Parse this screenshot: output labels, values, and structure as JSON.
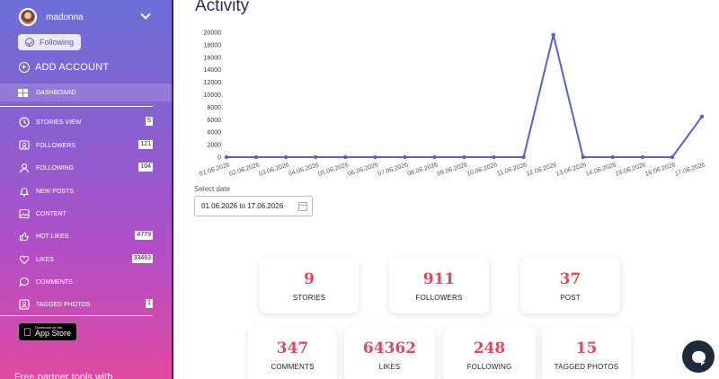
{
  "sidebar": {
    "profile": {
      "name": "madonna"
    },
    "following_button": "Following",
    "add_account": "ADD ACCOUNT",
    "dashboard": "DASHBOARD",
    "items": [
      {
        "label": "STORIES VIEW",
        "badge": "5",
        "icon": "clock-icon"
      },
      {
        "label": "FOLLOWERS",
        "badge": "121",
        "icon": "followers-icon"
      },
      {
        "label": "FOLLOWING",
        "badge": "104",
        "icon": "user-icon"
      },
      {
        "label": "NEW POSTS",
        "badge": "",
        "icon": "bell-icon"
      },
      {
        "label": "CONTENT",
        "badge": "",
        "icon": "image-icon"
      },
      {
        "label": "HOT LIKES",
        "badge": "4779",
        "icon": "thumbs-up-icon"
      },
      {
        "label": "LIKES",
        "badge": "33463",
        "icon": "heart-icon"
      },
      {
        "label": "COMMENTS",
        "badge": "",
        "icon": "comment-icon"
      },
      {
        "label": "TAGGED PHOTOS",
        "badge": "1",
        "icon": "tag-icon"
      }
    ],
    "app_store": {
      "small": "Download on the",
      "large": "App Store"
    },
    "promo": "Free partner tools with"
  },
  "main": {
    "title": "Activity",
    "date_label": "Select date",
    "date_value": "01.06.2026 to 17.06.2026",
    "stats_row1": [
      {
        "value": "9",
        "label": "STORIES"
      },
      {
        "value": "911",
        "label": "FOLLOWERS"
      },
      {
        "value": "37",
        "label": "POST"
      }
    ],
    "stats_row2": [
      {
        "value": "347",
        "label": "COMMENTS"
      },
      {
        "value": "64362",
        "label": "LIKES"
      },
      {
        "value": "248",
        "label": "FOLLOWING"
      },
      {
        "value": "15",
        "label": "TAGGED PHOTOS"
      }
    ]
  },
  "colors": {
    "line": "#5a60c8",
    "stat_number": "#e0495c",
    "title": "#2b2b55"
  },
  "chart_data": {
    "type": "line",
    "title": "",
    "xlabel": "",
    "ylabel": "",
    "categories": [
      "01.06.2026",
      "02.06.2026",
      "03.06.2026",
      "04.06.2026",
      "05.06.2026",
      "06.06.2026",
      "07.06.2026",
      "08.06.2026",
      "09.06.2026",
      "10.06.2026",
      "11.06.2026",
      "12.06.2026",
      "13.06.2026",
      "14.06.2026",
      "15.06.2026",
      "16.06.2026",
      "17.06.2026"
    ],
    "series": [
      {
        "values": [
          0,
          0,
          0,
          0,
          0,
          0,
          0,
          0,
          0,
          0,
          0,
          19600,
          0,
          0,
          0,
          0,
          6500
        ]
      }
    ],
    "yticks": [
      "0",
      "2000",
      "4000",
      "6000",
      "8000",
      "10000",
      "12000",
      "14000",
      "16000",
      "18000",
      "20000"
    ],
    "ylim": [
      0,
      20000
    ],
    "grid": false,
    "legend": "none"
  }
}
